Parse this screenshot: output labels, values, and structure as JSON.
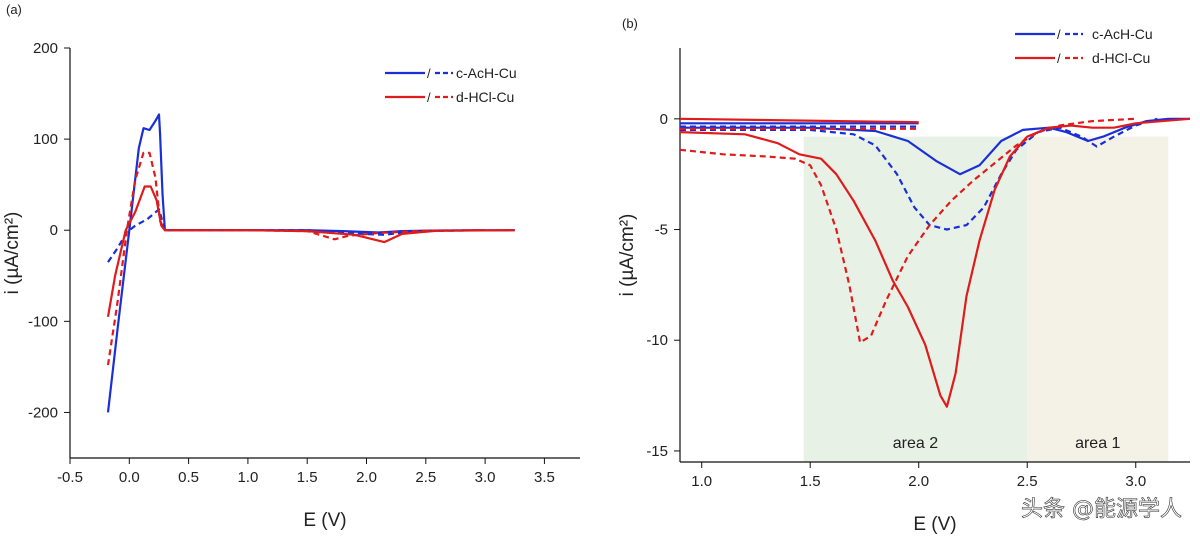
{
  "chart_data": [
    {
      "panel_label": "(a)",
      "type": "line",
      "xlabel": "E (V)",
      "ylabel": "i (µA/cm²)",
      "xlim": [
        -0.5,
        3.8
      ],
      "ylim": [
        -250,
        200
      ],
      "x_ticks": [
        -0.5,
        0.0,
        0.5,
        1.0,
        1.5,
        2.0,
        2.5,
        3.0,
        3.5
      ],
      "x_tick_labels": [
        "-0.5",
        "0.0",
        "0.5",
        "1.0",
        "1.5",
        "2.0",
        "2.5",
        "3.0",
        "3.5"
      ],
      "y_ticks": [
        -200,
        -100,
        0,
        100,
        200
      ],
      "y_tick_labels": [
        "-200",
        "-100",
        "0",
        "100",
        "200"
      ],
      "legend_position": "top-right",
      "legend": [
        {
          "label": "c-AcH-Cu",
          "color": "#1a2fd6"
        },
        {
          "label": "d-HCl-Cu",
          "color": "#e01b1b"
        }
      ],
      "series": [
        {
          "color": "#1a2fd6",
          "dash": false,
          "points": [
            [
              -0.18,
              -200
            ],
            [
              -0.1,
              -110
            ],
            [
              0.0,
              0
            ],
            [
              0.08,
              90
            ],
            [
              0.12,
              112
            ],
            [
              0.17,
              110
            ],
            [
              0.22,
              120
            ],
            [
              0.25,
              127
            ],
            [
              0.26,
              105
            ],
            [
              0.28,
              40
            ],
            [
              0.3,
              0
            ],
            [
              0.5,
              0
            ],
            [
              1.5,
              0
            ],
            [
              1.8,
              -1
            ],
            [
              2.1,
              -2.5
            ],
            [
              2.3,
              -1
            ],
            [
              2.6,
              -0.3
            ],
            [
              3.25,
              0
            ]
          ]
        },
        {
          "color": "#1a2fd6",
          "dash": true,
          "points": [
            [
              -0.18,
              -35
            ],
            [
              -0.1,
              -20
            ],
            [
              -0.02,
              -2
            ],
            [
              0.05,
              5
            ],
            [
              0.15,
              12
            ],
            [
              0.25,
              23
            ],
            [
              0.3,
              0
            ],
            [
              1.0,
              0
            ],
            [
              1.5,
              0
            ],
            [
              1.8,
              -3
            ],
            [
              2.15,
              -5
            ],
            [
              2.4,
              -1
            ],
            [
              3.0,
              0
            ]
          ]
        },
        {
          "color": "#e01b1b",
          "dash": false,
          "points": [
            [
              -0.18,
              -95
            ],
            [
              -0.12,
              -50
            ],
            [
              -0.03,
              0
            ],
            [
              0.05,
              20
            ],
            [
              0.13,
              48
            ],
            [
              0.18,
              48
            ],
            [
              0.23,
              33
            ],
            [
              0.27,
              5
            ],
            [
              0.3,
              0
            ],
            [
              1.0,
              0
            ],
            [
              1.5,
              -1
            ],
            [
              1.9,
              -5
            ],
            [
              2.15,
              -13
            ],
            [
              2.3,
              -4
            ],
            [
              2.6,
              -0.5
            ],
            [
              3.25,
              0
            ]
          ]
        },
        {
          "color": "#e01b1b",
          "dash": true,
          "points": [
            [
              -0.18,
              -148
            ],
            [
              -0.1,
              -80
            ],
            [
              -0.02,
              0
            ],
            [
              0.05,
              55
            ],
            [
              0.12,
              85
            ],
            [
              0.17,
              85
            ],
            [
              0.22,
              58
            ],
            [
              0.26,
              10
            ],
            [
              0.3,
              0
            ],
            [
              1.0,
              0
            ],
            [
              1.5,
              -1
            ],
            [
              1.73,
              -10
            ],
            [
              1.85,
              -6
            ],
            [
              2.1,
              -3
            ],
            [
              2.5,
              -0.5
            ],
            [
              3.0,
              0
            ]
          ]
        }
      ]
    },
    {
      "panel_label": "(b)",
      "type": "line",
      "xlabel": "E (V)",
      "ylabel": "i (µA/cm²)",
      "xlim": [
        0.9,
        3.25
      ],
      "ylim": [
        -15.5,
        3.2
      ],
      "x_ticks": [
        1.0,
        1.5,
        2.0,
        2.5,
        3.0
      ],
      "x_tick_labels": [
        "1.0",
        "1.5",
        "2.0",
        "2.5",
        "3.0"
      ],
      "y_ticks": [
        -15,
        -10,
        -5,
        0
      ],
      "y_tick_labels": [
        "-15",
        "-10",
        "-5",
        "0"
      ],
      "legend_position": "top-right",
      "legend": [
        {
          "label": "c-AcH-Cu",
          "color": "#1a2fd6"
        },
        {
          "label": "d-HCl-Cu",
          "color": "#e01b1b"
        }
      ],
      "shaded_regions": [
        {
          "label": "area 2",
          "x_range": [
            1.47,
            2.5
          ],
          "color": "#e2eee0"
        },
        {
          "label": "area 1",
          "x_range": [
            2.5,
            3.15
          ],
          "color": "#f1eee0"
        }
      ],
      "series": [
        {
          "color": "#1a2fd6",
          "dash": false,
          "points": [
            [
              0.9,
              -0.4
            ],
            [
              1.5,
              -0.4
            ],
            [
              1.8,
              -0.55
            ],
            [
              1.95,
              -1.0
            ],
            [
              2.08,
              -1.9
            ],
            [
              2.19,
              -2.5
            ],
            [
              2.28,
              -2.1
            ],
            [
              2.38,
              -1.0
            ],
            [
              2.48,
              -0.5
            ],
            [
              2.6,
              -0.4
            ],
            [
              2.68,
              -0.6
            ],
            [
              2.78,
              -1.0
            ],
            [
              2.85,
              -0.8
            ],
            [
              2.95,
              -0.4
            ],
            [
              3.05,
              -0.1
            ],
            [
              3.15,
              0.0
            ],
            [
              3.25,
              0.0
            ]
          ]
        },
        {
          "color": "#1a2fd6",
          "dash": false,
          "points": [
            [
              0.9,
              -0.2
            ],
            [
              2.0,
              -0.2
            ]
          ]
        },
        {
          "color": "#1a2fd6",
          "dash": true,
          "points": [
            [
              0.9,
              -0.5
            ],
            [
              1.5,
              -0.5
            ],
            [
              1.7,
              -0.7
            ],
            [
              1.8,
              -1.2
            ],
            [
              1.9,
              -2.5
            ],
            [
              1.98,
              -4.0
            ],
            [
              2.05,
              -4.8
            ],
            [
              2.13,
              -5.0
            ],
            [
              2.22,
              -4.8
            ],
            [
              2.3,
              -4.0
            ],
            [
              2.38,
              -2.5
            ],
            [
              2.45,
              -1.4
            ],
            [
              2.55,
              -0.6
            ],
            [
              2.65,
              -0.4
            ],
            [
              2.75,
              -0.8
            ],
            [
              2.82,
              -1.25
            ],
            [
              2.9,
              -0.8
            ],
            [
              3.0,
              -0.3
            ],
            [
              3.1,
              0.0
            ]
          ]
        },
        {
          "color": "#1a2fd6",
          "dash": true,
          "points": [
            [
              0.9,
              -0.35
            ],
            [
              2.0,
              -0.35
            ]
          ]
        },
        {
          "color": "#e01b1b",
          "dash": false,
          "points": [
            [
              0.9,
              -0.6
            ],
            [
              1.2,
              -0.7
            ],
            [
              1.35,
              -1.1
            ],
            [
              1.45,
              -1.6
            ],
            [
              1.55,
              -1.8
            ],
            [
              1.62,
              -2.5
            ],
            [
              1.7,
              -3.7
            ],
            [
              1.8,
              -5.5
            ],
            [
              1.88,
              -7.3
            ],
            [
              1.95,
              -8.5
            ],
            [
              2.03,
              -10.2
            ],
            [
              2.1,
              -12.5
            ],
            [
              2.13,
              -13.0
            ],
            [
              2.17,
              -11.5
            ],
            [
              2.22,
              -8.0
            ],
            [
              2.28,
              -5.5
            ],
            [
              2.35,
              -3.2
            ],
            [
              2.42,
              -1.7
            ],
            [
              2.5,
              -0.8
            ],
            [
              2.6,
              -0.4
            ],
            [
              2.7,
              -0.3
            ],
            [
              2.8,
              -0.4
            ],
            [
              2.9,
              -0.4
            ],
            [
              3.0,
              -0.2
            ],
            [
              3.25,
              0.0
            ]
          ]
        },
        {
          "color": "#e01b1b",
          "dash": false,
          "points": [
            [
              0.9,
              0.0
            ],
            [
              2.0,
              -0.15
            ]
          ]
        },
        {
          "color": "#e01b1b",
          "dash": true,
          "points": [
            [
              0.9,
              -1.4
            ],
            [
              1.1,
              -1.6
            ],
            [
              1.3,
              -1.7
            ],
            [
              1.43,
              -1.8
            ],
            [
              1.5,
              -2.1
            ],
            [
              1.55,
              -3.0
            ],
            [
              1.62,
              -5.0
            ],
            [
              1.68,
              -7.5
            ],
            [
              1.73,
              -10.1
            ],
            [
              1.78,
              -9.8
            ],
            [
              1.85,
              -8.2
            ],
            [
              1.95,
              -6.2
            ],
            [
              2.05,
              -4.8
            ],
            [
              2.15,
              -3.7
            ],
            [
              2.25,
              -2.8
            ],
            [
              2.35,
              -2.0
            ],
            [
              2.45,
              -1.2
            ],
            [
              2.55,
              -0.6
            ],
            [
              2.65,
              -0.3
            ],
            [
              2.8,
              -0.1
            ],
            [
              3.0,
              0.0
            ]
          ]
        },
        {
          "color": "#e01b1b",
          "dash": true,
          "points": [
            [
              0.9,
              -0.45
            ],
            [
              2.0,
              -0.45
            ]
          ]
        }
      ]
    }
  ],
  "watermark": "头条 @能源学人"
}
